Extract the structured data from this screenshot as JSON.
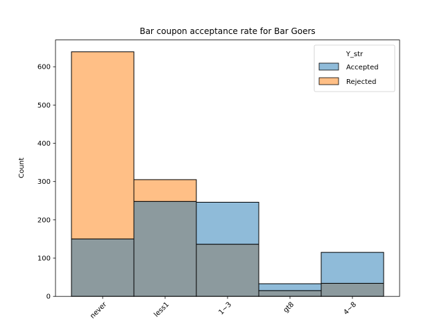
{
  "chart_data": {
    "type": "bar",
    "title": "Bar coupon acceptance rate for Bar Goers",
    "xlabel": "",
    "ylabel": "Count",
    "categories": [
      "never",
      "less1",
      "1~3",
      "gt8",
      "4~8"
    ],
    "series": [
      {
        "name": "Accepted",
        "values": [
          150,
          248,
          246,
          33,
          115
        ],
        "color": "#1f77b4"
      },
      {
        "name": "Rejected",
        "values": [
          639,
          305,
          136,
          15,
          34
        ],
        "color": "#ff7f0e"
      }
    ],
    "overlap_color": "#8c9a9e",
    "ylim": [
      0,
      670
    ],
    "yticks": [
      0,
      100,
      200,
      300,
      400,
      500,
      600
    ],
    "grid": false,
    "legend": {
      "title": "Y_str",
      "position": "top-right"
    }
  }
}
